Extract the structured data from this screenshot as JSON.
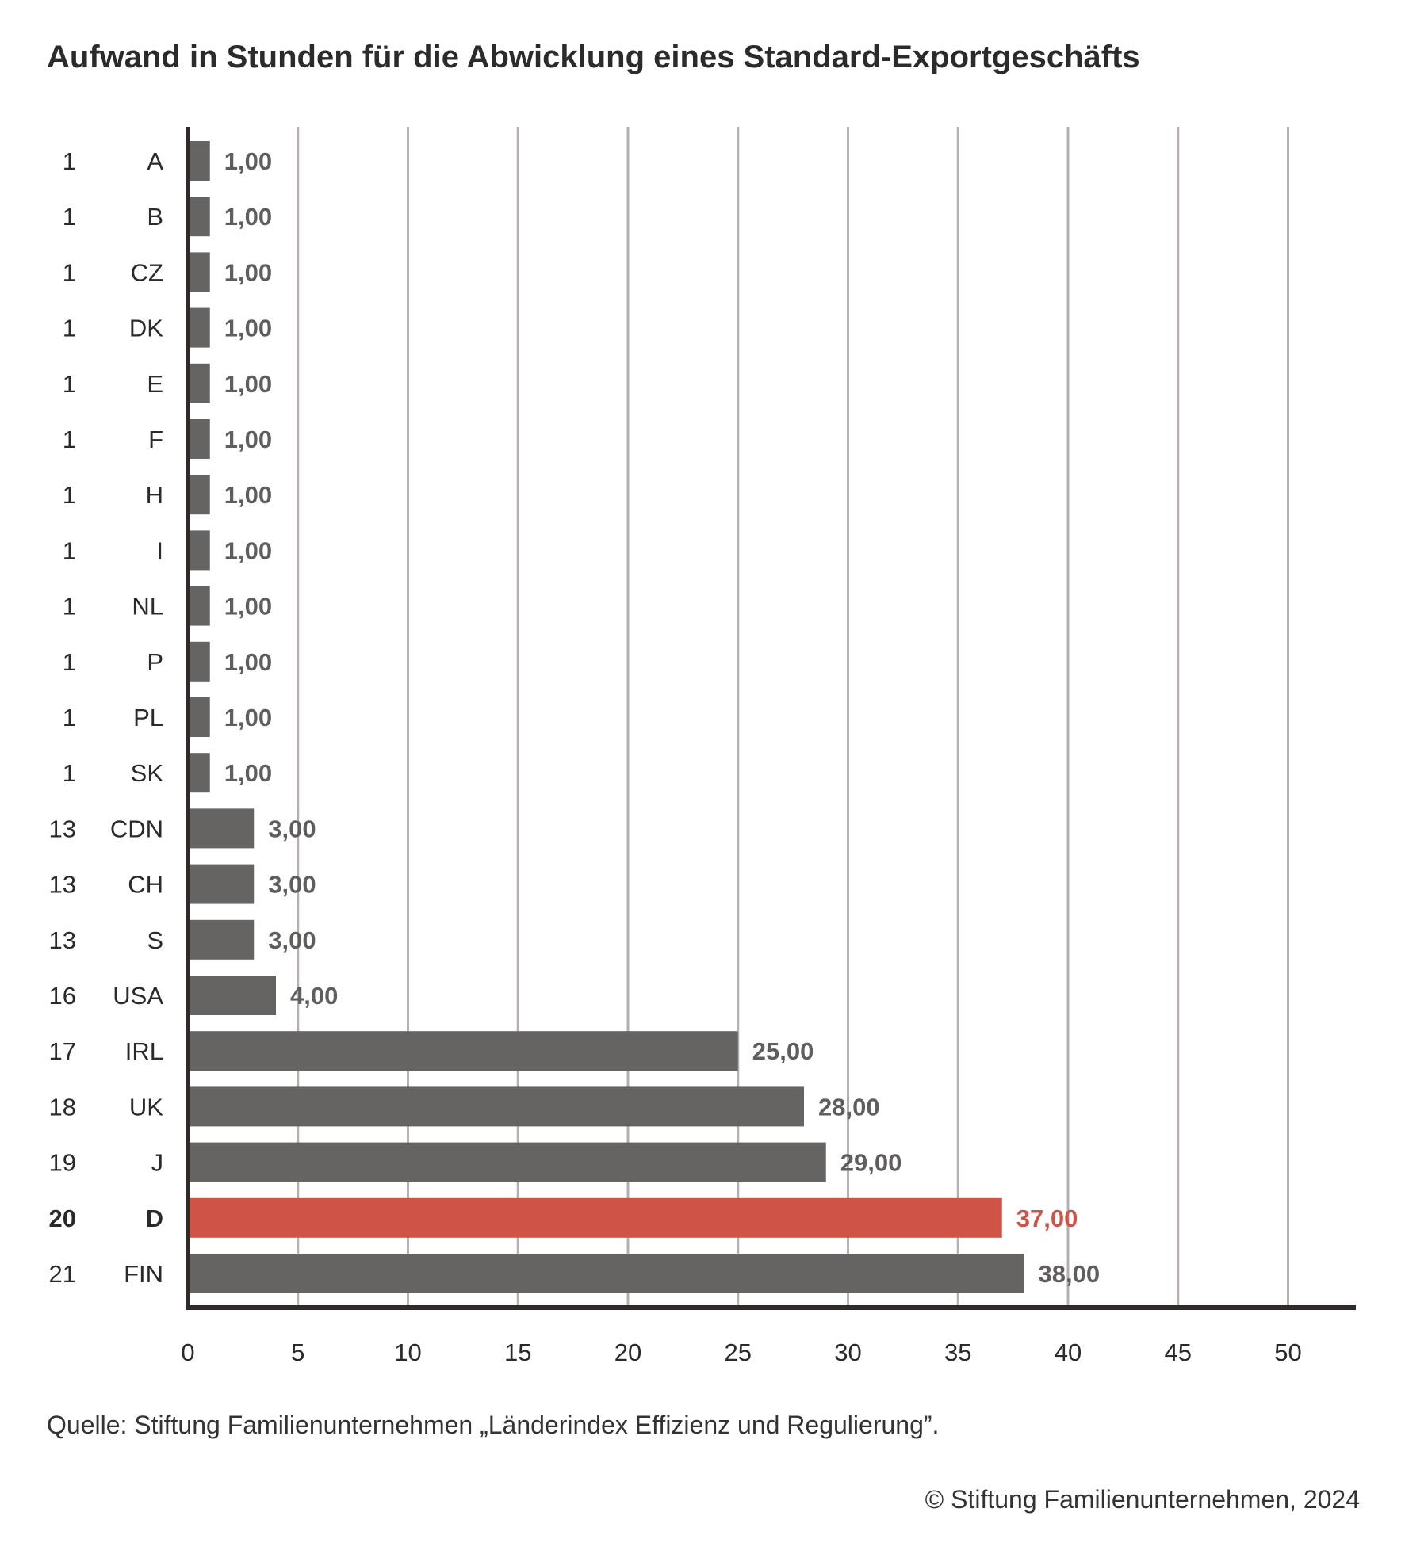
{
  "chart_data": {
    "type": "bar",
    "orientation": "horizontal",
    "title": "Aufwand in Stunden für die Abwicklung eines Standard-Exportgeschäfts",
    "categories": [
      "A",
      "B",
      "CZ",
      "DK",
      "E",
      "F",
      "H",
      "I",
      "NL",
      "P",
      "PL",
      "SK",
      "CDN",
      "CH",
      "S",
      "USA",
      "IRL",
      "UK",
      "J",
      "D",
      "FIN"
    ],
    "ranks": [
      "1",
      "1",
      "1",
      "1",
      "1",
      "1",
      "1",
      "1",
      "1",
      "1",
      "1",
      "1",
      "13",
      "13",
      "13",
      "16",
      "17",
      "18",
      "19",
      "20",
      "21"
    ],
    "values": [
      1,
      1,
      1,
      1,
      1,
      1,
      1,
      1,
      1,
      1,
      1,
      1,
      3,
      3,
      3,
      4,
      25,
      28,
      29,
      37,
      38
    ],
    "value_labels": [
      "1,00",
      "1,00",
      "1,00",
      "1,00",
      "1,00",
      "1,00",
      "1,00",
      "1,00",
      "1,00",
      "1,00",
      "1,00",
      "1,00",
      "3,00",
      "3,00",
      "3,00",
      "4,00",
      "25,00",
      "28,00",
      "29,00",
      "37,00",
      "38,00"
    ],
    "highlight": "D",
    "xlim": [
      0,
      53
    ],
    "xticks": [
      0,
      5,
      10,
      15,
      20,
      25,
      30,
      35,
      40,
      45,
      50
    ],
    "xlabel": "",
    "ylabel": "",
    "grid": true,
    "colors": {
      "bar": "#656463",
      "highlight": "#d05446",
      "grid": "#b5b0ae",
      "axis": "#2e2a28",
      "label": "#5f5e5d"
    }
  },
  "footer": {
    "source": "Quelle: Stiftung Familienunternehmen „Länderindex Effizienz und Regulierung”.",
    "copyright": "© Stiftung Familienunternehmen, 2024"
  }
}
